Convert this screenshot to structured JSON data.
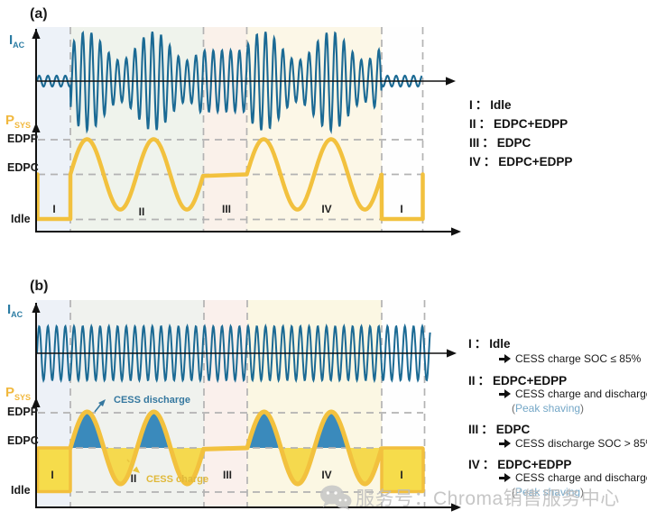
{
  "panels": {
    "a": {
      "label": "(a)",
      "iac": {
        "main": "I",
        "sub": "AC"
      },
      "psys": {
        "main": "P",
        "sub": "SYS"
      },
      "levels": {
        "edpp": "EDPP",
        "edpc": "EDPC",
        "idle": "Idle"
      },
      "regions": [
        "I",
        "II",
        "III",
        "IV",
        "I"
      ],
      "legend": {
        "colon": "：",
        "items": [
          {
            "numeral": "I",
            "mode": "Idle"
          },
          {
            "numeral": "II",
            "mode": "EDPC+EDPP"
          },
          {
            "numeral": "III",
            "mode": "EDPC"
          },
          {
            "numeral": "IV",
            "mode": "EDPC+EDPP"
          }
        ]
      }
    },
    "b": {
      "label": "(b)",
      "iac": {
        "main": "I",
        "sub": "AC"
      },
      "psys": {
        "main": "P",
        "sub": "SYS"
      },
      "levels": {
        "edpp": "EDPP",
        "edpc": "EDPC",
        "idle": "Idle"
      },
      "regions": [
        "I",
        "II",
        "III",
        "IV",
        "I"
      ],
      "annotations": {
        "discharge": "CESS discharge",
        "charge": "CESS charge"
      },
      "legend": {
        "colon": "：",
        "items": [
          {
            "numeral": "I",
            "mode": "Idle",
            "note": "CESS charge SOC ≤ 85%"
          },
          {
            "numeral": "II",
            "mode": "EDPC+EDPP",
            "note": "CESS charge and discharge",
            "paren_open": "(",
            "note2": "Peak shaving",
            "paren_close": ")"
          },
          {
            "numeral": "III",
            "mode": "EDPC",
            "note": "CESS discharge SOC > 85%"
          },
          {
            "numeral": "IV",
            "mode": "EDPC+EDPP",
            "note": "CESS charge and discharge",
            "paren_open": "(",
            "note2": "Peak shaving",
            "paren_close": ")"
          }
        ]
      }
    }
  },
  "watermark": {
    "icon": "wechat-icon",
    "text": "服务号：Chroma销售服务中心"
  },
  "colors": {
    "wave_blue": "#1b6a94",
    "fill_blue": "#3a8abc",
    "curve_yellow": "#f2c13e",
    "fill_yellow": "#f5d94e",
    "rect_yellow_fill": "#f6dc4b",
    "rect_yellow_stroke": "#f2bf3e",
    "peak_shaving_blue": "#74a7c7",
    "iac_label": "#2b7ca3",
    "psys_label": "#f1b83e",
    "dash_gray": "#b3b3b3",
    "axis_black": "#111111"
  },
  "chart_data": [
    {
      "panel": "(a)",
      "type": "line",
      "signals": [
        {
          "name": "I_AC",
          "behavior": [
            "minimal amplitude in region I",
            "amplitude modulated following P_SYS (2 sine cycles) in region II",
            "constant medium amplitude in region III",
            "amplitude modulated following P_SYS (2 sine cycles) in region IV",
            "minimal amplitude in final region I"
          ]
        },
        {
          "name": "P_SYS",
          "y_levels": [
            "Idle",
            "EDPC",
            "EDPP"
          ],
          "profile": [
            "flat at Idle in region I",
            "sine oscillating between EDPP and below EDPC, 2 cycles, midline EDPC, in region II",
            "flat at EDPC in region III",
            "sine oscillating between EDPP and below EDPC, 2 cycles, in region IV",
            "flat at Idle in final region I"
          ]
        }
      ],
      "legend_position": "right"
    },
    {
      "panel": "(b)",
      "type": "line",
      "signals": [
        {
          "name": "I_AC",
          "behavior": [
            "constant amplitude across all regions (grid current smoothed by CESS)"
          ]
        },
        {
          "name": "P_SYS",
          "y_levels": [
            "Idle",
            "EDPC",
            "EDPP"
          ],
          "profile": [
            "filled yellow block from Idle to EDPC in region I",
            "sine 2 cycles in region II with blue fill above EDPC = CESS discharge and yellow fill below EDPC = CESS charge",
            "flat at EDPC in region III",
            "sine 2 cycles in region IV with same charge/discharge fills",
            "filled yellow block in final region I"
          ]
        }
      ],
      "legend_position": "right"
    }
  ]
}
